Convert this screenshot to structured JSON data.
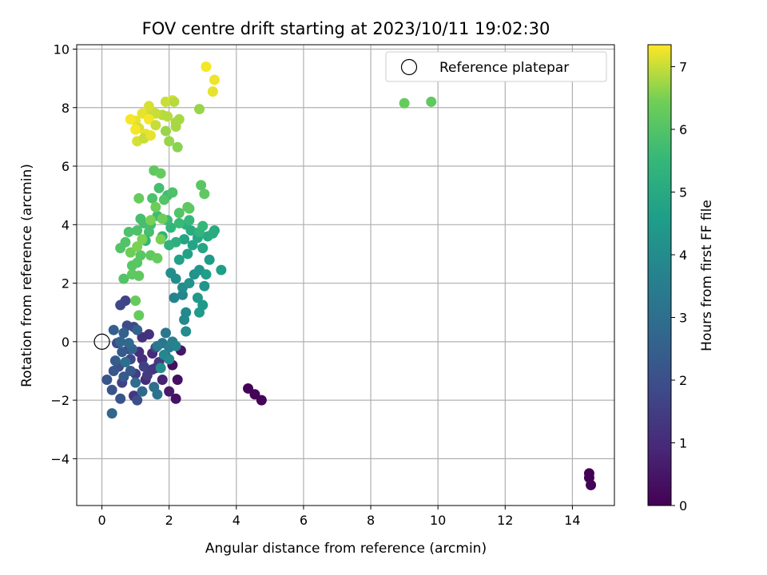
{
  "chart_data": {
    "type": "scatter",
    "title": "FOV centre drift starting at 2023/10/11 19:02:30",
    "xlabel": "Angular distance from reference (arcmin)",
    "ylabel": "Rotation from reference (arcmin)",
    "xlim": [
      -0.75,
      15.25
    ],
    "ylim": [
      -5.6,
      10.15
    ],
    "x_ticks": [
      0,
      2,
      4,
      6,
      8,
      10,
      12,
      14
    ],
    "y_ticks": [
      -4,
      -2,
      0,
      2,
      4,
      6,
      8,
      10
    ],
    "x_tick_labels": [
      "0",
      "2",
      "4",
      "6",
      "8",
      "10",
      "12",
      "14"
    ],
    "y_tick_labels": [
      "−4",
      "−2",
      "0",
      "2",
      "4",
      "6",
      "8",
      "10"
    ],
    "grid": true,
    "legend": {
      "placement": "top-right",
      "entries": [
        {
          "label": "Reference platepar",
          "marker": "hollow-circle"
        }
      ]
    },
    "reference_point": {
      "x": 0,
      "y": 0
    },
    "colorbar": {
      "label": "Hours from first FF file",
      "range": [
        0,
        7.35
      ],
      "ticks": [
        0,
        1,
        2,
        3,
        4,
        5,
        6,
        7
      ],
      "tick_labels": [
        "0",
        "1",
        "2",
        "3",
        "4",
        "5",
        "6",
        "7"
      ],
      "colormap": "viridis"
    },
    "points": [
      {
        "x": 4.35,
        "y": -1.6,
        "t": 0.05
      },
      {
        "x": 4.55,
        "y": -1.8,
        "t": 0.08
      },
      {
        "x": 4.75,
        "y": -2.0,
        "t": 0.1
      },
      {
        "x": 14.5,
        "y": -4.5,
        "t": 0.05
      },
      {
        "x": 14.5,
        "y": -4.65,
        "t": 0.06
      },
      {
        "x": 14.55,
        "y": -4.9,
        "t": 0.07
      },
      {
        "x": 2.1,
        "y": -0.8,
        "t": 0.3
      },
      {
        "x": 2.25,
        "y": -1.3,
        "t": 0.35
      },
      {
        "x": 2.2,
        "y": -1.95,
        "t": 0.4
      },
      {
        "x": 2.35,
        "y": -0.3,
        "t": 0.5
      },
      {
        "x": 2.0,
        "y": -1.7,
        "t": 0.6
      },
      {
        "x": 1.9,
        "y": -0.5,
        "t": 0.7
      },
      {
        "x": 1.8,
        "y": -1.3,
        "t": 0.8
      },
      {
        "x": 1.6,
        "y": -0.9,
        "t": 0.9
      },
      {
        "x": 1.5,
        "y": -0.4,
        "t": 1.0
      },
      {
        "x": 1.3,
        "y": -1.3,
        "t": 1.0
      },
      {
        "x": 1.2,
        "y": -0.6,
        "t": 1.1
      },
      {
        "x": 1.1,
        "y": -0.35,
        "t": 1.1
      },
      {
        "x": 1.4,
        "y": 0.25,
        "t": 1.2
      },
      {
        "x": 1.2,
        "y": 0.15,
        "t": 1.2
      },
      {
        "x": 0.95,
        "y": -1.85,
        "t": 1.3
      },
      {
        "x": 1.5,
        "y": -0.95,
        "t": 1.3
      },
      {
        "x": 1.35,
        "y": -1.15,
        "t": 1.4
      },
      {
        "x": 1.7,
        "y": -0.7,
        "t": 1.4
      },
      {
        "x": 0.8,
        "y": -0.25,
        "t": 1.5
      },
      {
        "x": 1.0,
        "y": -1.1,
        "t": 1.5
      },
      {
        "x": 1.25,
        "y": -0.85,
        "t": 1.6
      },
      {
        "x": 0.6,
        "y": -1.4,
        "t": 1.6
      },
      {
        "x": 0.7,
        "y": 1.4,
        "t": 1.7
      },
      {
        "x": 0.55,
        "y": 1.25,
        "t": 1.8
      },
      {
        "x": 1.6,
        "y": -0.2,
        "t": 1.7
      },
      {
        "x": 0.85,
        "y": -0.6,
        "t": 1.8
      },
      {
        "x": 0.95,
        "y": 0.5,
        "t": 1.8
      },
      {
        "x": 0.75,
        "y": 0.55,
        "t": 1.9
      },
      {
        "x": 0.45,
        "y": -0.05,
        "t": 1.9
      },
      {
        "x": 0.5,
        "y": -0.85,
        "t": 2.0
      },
      {
        "x": 1.05,
        "y": -2.0,
        "t": 2.0
      },
      {
        "x": 0.55,
        "y": -1.95,
        "t": 2.1
      },
      {
        "x": 0.3,
        "y": -1.65,
        "t": 2.1
      },
      {
        "x": 0.15,
        "y": -1.3,
        "t": 2.2
      },
      {
        "x": 0.35,
        "y": -1.0,
        "t": 2.2
      },
      {
        "x": 0.65,
        "y": -1.2,
        "t": 2.3
      },
      {
        "x": 0.85,
        "y": -1.0,
        "t": 2.3
      },
      {
        "x": 0.4,
        "y": -0.65,
        "t": 2.4
      },
      {
        "x": 0.6,
        "y": -0.35,
        "t": 2.4
      },
      {
        "x": 0.35,
        "y": 0.4,
        "t": 2.5
      },
      {
        "x": 0.65,
        "y": 0.3,
        "t": 2.5
      },
      {
        "x": 1.05,
        "y": 0.4,
        "t": 2.6
      },
      {
        "x": 0.9,
        "y": -0.25,
        "t": 2.6
      },
      {
        "x": 0.3,
        "y": -2.45,
        "t": 2.7
      },
      {
        "x": 0.55,
        "y": 0.0,
        "t": 2.7
      },
      {
        "x": 0.8,
        "y": -0.05,
        "t": 2.8
      },
      {
        "x": 1.2,
        "y": -1.7,
        "t": 2.8
      },
      {
        "x": 1.0,
        "y": -1.4,
        "t": 2.9
      },
      {
        "x": 1.55,
        "y": -1.55,
        "t": 3.0
      },
      {
        "x": 0.7,
        "y": -0.7,
        "t": 3.0
      },
      {
        "x": 1.65,
        "y": -1.8,
        "t": 3.1
      },
      {
        "x": 1.8,
        "y": -0.05,
        "t": 3.2
      },
      {
        "x": 1.9,
        "y": 0.3,
        "t": 3.3
      },
      {
        "x": 1.65,
        "y": -0.15,
        "t": 3.4
      },
      {
        "x": 2.0,
        "y": -0.2,
        "t": 3.5
      },
      {
        "x": 2.1,
        "y": 0.0,
        "t": 3.6
      },
      {
        "x": 2.2,
        "y": -0.15,
        "t": 3.7
      },
      {
        "x": 1.85,
        "y": -0.45,
        "t": 3.8
      },
      {
        "x": 2.0,
        "y": -0.6,
        "t": 3.9
      },
      {
        "x": 1.75,
        "y": -0.9,
        "t": 4.0
      },
      {
        "x": 2.15,
        "y": 1.5,
        "t": 3.7
      },
      {
        "x": 2.4,
        "y": 1.6,
        "t": 3.8
      },
      {
        "x": 2.5,
        "y": 1.0,
        "t": 3.9
      },
      {
        "x": 2.45,
        "y": 0.75,
        "t": 3.9
      },
      {
        "x": 2.5,
        "y": 0.35,
        "t": 4.0
      },
      {
        "x": 2.4,
        "y": 1.85,
        "t": 4.0
      },
      {
        "x": 2.05,
        "y": 2.35,
        "t": 4.1
      },
      {
        "x": 2.2,
        "y": 2.15,
        "t": 4.1
      },
      {
        "x": 2.6,
        "y": 2.0,
        "t": 4.2
      },
      {
        "x": 2.75,
        "y": 2.3,
        "t": 4.2
      },
      {
        "x": 2.9,
        "y": 2.45,
        "t": 4.3
      },
      {
        "x": 3.05,
        "y": 1.9,
        "t": 4.3
      },
      {
        "x": 2.85,
        "y": 1.5,
        "t": 4.4
      },
      {
        "x": 3.0,
        "y": 1.25,
        "t": 4.4
      },
      {
        "x": 2.9,
        "y": 1.0,
        "t": 4.5
      },
      {
        "x": 3.2,
        "y": 2.8,
        "t": 4.5
      },
      {
        "x": 3.55,
        "y": 2.45,
        "t": 4.6
      },
      {
        "x": 3.1,
        "y": 2.3,
        "t": 4.6
      },
      {
        "x": 2.3,
        "y": 2.8,
        "t": 4.7
      },
      {
        "x": 2.55,
        "y": 3.0,
        "t": 4.7
      },
      {
        "x": 2.7,
        "y": 3.3,
        "t": 4.8
      },
      {
        "x": 2.45,
        "y": 3.5,
        "t": 4.8
      },
      {
        "x": 2.85,
        "y": 3.55,
        "t": 4.9
      },
      {
        "x": 3.0,
        "y": 3.2,
        "t": 4.9
      },
      {
        "x": 3.15,
        "y": 3.6,
        "t": 5.0
      },
      {
        "x": 3.35,
        "y": 3.8,
        "t": 5.0
      },
      {
        "x": 3.3,
        "y": 3.7,
        "t": 5.1
      },
      {
        "x": 2.65,
        "y": 3.8,
        "t": 5.1
      },
      {
        "x": 2.5,
        "y": 4.0,
        "t": 5.2
      },
      {
        "x": 2.2,
        "y": 3.4,
        "t": 5.2
      },
      {
        "x": 2.0,
        "y": 3.3,
        "t": 5.3
      },
      {
        "x": 1.8,
        "y": 3.6,
        "t": 5.3
      },
      {
        "x": 2.05,
        "y": 3.9,
        "t": 5.4
      },
      {
        "x": 2.9,
        "y": 3.75,
        "t": 5.4
      },
      {
        "x": 3.0,
        "y": 3.95,
        "t": 5.5
      },
      {
        "x": 2.6,
        "y": 4.15,
        "t": 5.5
      },
      {
        "x": 2.3,
        "y": 4.05,
        "t": 5.6
      },
      {
        "x": 1.95,
        "y": 4.15,
        "t": 5.6
      },
      {
        "x": 1.65,
        "y": 4.3,
        "t": 5.7
      },
      {
        "x": 1.45,
        "y": 4.0,
        "t": 5.7
      },
      {
        "x": 1.25,
        "y": 4.05,
        "t": 5.8
      },
      {
        "x": 1.4,
        "y": 3.75,
        "t": 5.8
      },
      {
        "x": 1.05,
        "y": 3.8,
        "t": 5.9
      },
      {
        "x": 0.8,
        "y": 3.75,
        "t": 5.9
      },
      {
        "x": 0.7,
        "y": 3.4,
        "t": 6.0
      },
      {
        "x": 0.55,
        "y": 3.2,
        "t": 6.0
      },
      {
        "x": 0.65,
        "y": 2.15,
        "t": 6.0
      },
      {
        "x": 0.9,
        "y": 2.6,
        "t": 6.1
      },
      {
        "x": 1.05,
        "y": 2.7,
        "t": 6.1
      },
      {
        "x": 1.15,
        "y": 2.95,
        "t": 6.1
      },
      {
        "x": 0.9,
        "y": 2.3,
        "t": 6.2
      },
      {
        "x": 1.1,
        "y": 2.25,
        "t": 6.2
      },
      {
        "x": 1.45,
        "y": 2.95,
        "t": 6.2
      },
      {
        "x": 1.65,
        "y": 2.85,
        "t": 6.3
      },
      {
        "x": 1.0,
        "y": 1.4,
        "t": 6.3
      },
      {
        "x": 1.1,
        "y": 0.9,
        "t": 6.3
      },
      {
        "x": 1.3,
        "y": 3.45,
        "t": 5.4
      },
      {
        "x": 1.15,
        "y": 4.2,
        "t": 5.8
      },
      {
        "x": 1.5,
        "y": 4.9,
        "t": 5.9
      },
      {
        "x": 1.7,
        "y": 5.25,
        "t": 5.8
      },
      {
        "x": 1.95,
        "y": 5.0,
        "t": 5.7
      },
      {
        "x": 2.1,
        "y": 5.1,
        "t": 5.9
      },
      {
        "x": 1.85,
        "y": 4.85,
        "t": 6.0
      },
      {
        "x": 2.3,
        "y": 4.4,
        "t": 6.0
      },
      {
        "x": 2.6,
        "y": 4.55,
        "t": 6.1
      },
      {
        "x": 2.95,
        "y": 5.35,
        "t": 6.1
      },
      {
        "x": 3.05,
        "y": 5.05,
        "t": 6.2
      },
      {
        "x": 2.55,
        "y": 4.6,
        "t": 6.2
      },
      {
        "x": 1.55,
        "y": 5.85,
        "t": 6.2
      },
      {
        "x": 1.75,
        "y": 5.75,
        "t": 6.3
      },
      {
        "x": 1.1,
        "y": 4.9,
        "t": 6.3
      },
      {
        "x": 1.6,
        "y": 4.6,
        "t": 6.4
      },
      {
        "x": 1.8,
        "y": 4.2,
        "t": 6.4
      },
      {
        "x": 1.45,
        "y": 4.15,
        "t": 6.5
      },
      {
        "x": 1.2,
        "y": 3.5,
        "t": 6.5
      },
      {
        "x": 0.85,
        "y": 3.05,
        "t": 6.4
      },
      {
        "x": 1.05,
        "y": 3.25,
        "t": 6.5
      },
      {
        "x": 1.75,
        "y": 3.5,
        "t": 6.5
      },
      {
        "x": 9.0,
        "y": 8.15,
        "t": 6.3
      },
      {
        "x": 9.8,
        "y": 8.2,
        "t": 6.2
      },
      {
        "x": 2.25,
        "y": 6.65,
        "t": 6.6
      },
      {
        "x": 2.0,
        "y": 6.85,
        "t": 6.7
      },
      {
        "x": 1.9,
        "y": 7.2,
        "t": 6.7
      },
      {
        "x": 2.2,
        "y": 7.5,
        "t": 6.8
      },
      {
        "x": 2.3,
        "y": 7.6,
        "t": 6.8
      },
      {
        "x": 2.9,
        "y": 7.95,
        "t": 6.7
      },
      {
        "x": 1.8,
        "y": 7.75,
        "t": 6.9
      },
      {
        "x": 1.6,
        "y": 7.8,
        "t": 7.0
      },
      {
        "x": 1.9,
        "y": 8.2,
        "t": 7.0
      },
      {
        "x": 2.1,
        "y": 8.25,
        "t": 7.1
      },
      {
        "x": 2.15,
        "y": 8.2,
        "t": 6.9
      },
      {
        "x": 1.45,
        "y": 7.9,
        "t": 7.0
      },
      {
        "x": 1.4,
        "y": 8.05,
        "t": 7.1
      },
      {
        "x": 1.2,
        "y": 7.8,
        "t": 7.2
      },
      {
        "x": 1.0,
        "y": 7.55,
        "t": 7.2
      },
      {
        "x": 0.85,
        "y": 7.6,
        "t": 7.3
      },
      {
        "x": 1.1,
        "y": 7.3,
        "t": 7.1
      },
      {
        "x": 1.3,
        "y": 7.1,
        "t": 7.2
      },
      {
        "x": 1.0,
        "y": 7.25,
        "t": 7.3
      },
      {
        "x": 1.05,
        "y": 6.85,
        "t": 7.1
      },
      {
        "x": 1.25,
        "y": 6.95,
        "t": 7.0
      },
      {
        "x": 1.45,
        "y": 7.05,
        "t": 7.2
      },
      {
        "x": 1.4,
        "y": 7.6,
        "t": 7.3
      },
      {
        "x": 1.6,
        "y": 7.4,
        "t": 7.0
      },
      {
        "x": 1.95,
        "y": 7.7,
        "t": 6.9
      },
      {
        "x": 2.2,
        "y": 7.35,
        "t": 6.8
      },
      {
        "x": 3.1,
        "y": 9.4,
        "t": 7.3
      },
      {
        "x": 3.35,
        "y": 8.95,
        "t": 7.25
      },
      {
        "x": 3.3,
        "y": 8.55,
        "t": 7.2
      }
    ]
  }
}
